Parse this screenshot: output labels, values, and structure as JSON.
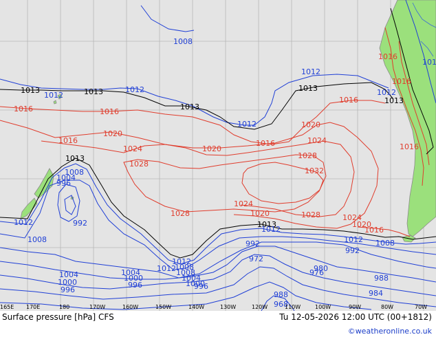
{
  "footer": {
    "title": "Surface pressure [hPa] CFS",
    "datetime": "Tu 12-05-2026 12:00 UTC (00+1812)",
    "credit": "©weatheronline.co.uk"
  },
  "longitude_labels": [
    "165E",
    "170E",
    "180",
    "170W",
    "160W",
    "150W",
    "140W",
    "130W",
    "120W",
    "110W",
    "100W",
    "90W",
    "80W",
    "70W"
  ],
  "isobar_labels": {
    "black": [
      "1013",
      "1013",
      "1013",
      "1013",
      "1013",
      "1013",
      "1013"
    ],
    "red": [
      "1016",
      "1016",
      "1016",
      "1016",
      "1016",
      "1016",
      "1016",
      "1020",
      "1020",
      "1020",
      "1020",
      "1020",
      "1024",
      "1024",
      "1024",
      "1024",
      "1028",
      "1028",
      "1028",
      "1028",
      "1032",
      "1016",
      "1016"
    ],
    "blue": [
      "1008",
      "1012",
      "1012",
      "1012",
      "1012",
      "1012",
      "1012",
      "1012",
      "1008",
      "1004",
      "996",
      "992",
      "1012",
      "1008",
      "1008",
      "1004",
      "1000",
      "996",
      "992",
      "988",
      "984",
      "980",
      "976",
      "972",
      "968",
      "1012",
      "1008",
      "1004",
      "1000",
      "996",
      "1004",
      "1000",
      "996",
      "992",
      "988",
      "1008",
      "1012",
      "1012"
    ]
  },
  "colors": {
    "ocean": "#e4e4e4",
    "land": "#9be07c",
    "grid": "#b8b8b8",
    "isobar_high": "#e03c2c",
    "isobar_low": "#1f3fd6",
    "isobar_ref": "#000000"
  }
}
